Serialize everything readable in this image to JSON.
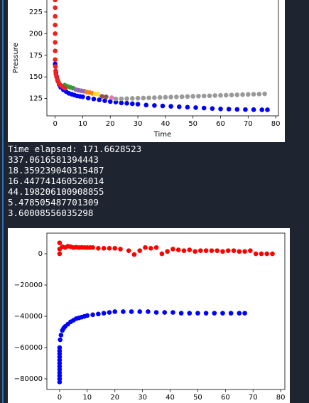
{
  "chart_data": [
    {
      "type": "scatter",
      "xlabel": "Time",
      "ylabel": "Pressure",
      "xlim": [
        -3,
        81
      ],
      "ylim": [
        105,
        243
      ],
      "xticks": [
        0,
        10,
        20,
        30,
        40,
        50,
        60,
        70,
        80
      ],
      "yticks": [
        125,
        150,
        175,
        200,
        225
      ],
      "series": [
        {
          "color": "#0000ff",
          "x": [
            0,
            0.3,
            0.6,
            1,
            1.5,
            2,
            3,
            4,
            5,
            6,
            7,
            8,
            9,
            10,
            12,
            14,
            16,
            18,
            20,
            22,
            24,
            26,
            28,
            30,
            33,
            36,
            39,
            42,
            45,
            48,
            51,
            54,
            57,
            60,
            63,
            66,
            69,
            72,
            75,
            77
          ],
          "values": [
            165,
            155,
            150,
            145,
            141,
            138,
            135,
            133,
            131,
            130,
            129,
            128,
            127.5,
            127,
            125.5,
            124.5,
            123.5,
            122.5,
            121.5,
            121,
            120,
            119.5,
            119,
            118.5,
            117.5,
            117,
            116.5,
            116,
            115.5,
            115,
            114.5,
            114,
            113.5,
            113,
            112.8,
            112.5,
            112.3,
            112.2,
            112,
            112
          ]
        },
        {
          "color": "#999999",
          "x": [
            22,
            24,
            26,
            28,
            30,
            32,
            34,
            36,
            38,
            40,
            42,
            44,
            46,
            48,
            50,
            52,
            54,
            56,
            58,
            60,
            62,
            64,
            66,
            68,
            70,
            72,
            74,
            76
          ],
          "values": [
            124.5,
            124.7,
            124.9,
            125.2,
            125.4,
            125.6,
            125.8,
            126,
            126.3,
            126.5,
            126.7,
            126.9,
            127.1,
            127.4,
            127.6,
            127.8,
            128,
            128.2,
            128.5,
            128.7,
            128.9,
            129.1,
            129.3,
            129.6,
            129.8,
            130,
            130.2,
            130.4
          ]
        },
        {
          "color": "#2ca02c",
          "x": [
            3.5,
            4.5,
            5.5,
            6.5
          ],
          "values": [
            140.5,
            139,
            138,
            137
          ]
        },
        {
          "color": "#9467bd",
          "x": [
            7.5,
            8.5,
            9.5,
            10.5
          ],
          "values": [
            135.5,
            134.5,
            134,
            133.5
          ]
        },
        {
          "color": "#ff7f0e",
          "x": [
            11.5,
            12.5,
            13.5
          ],
          "values": [
            132.5,
            132,
            131
          ]
        },
        {
          "color": "#ffdd33",
          "x": [
            14.5,
            15.5
          ],
          "values": [
            130.5,
            130
          ]
        },
        {
          "color": "#8c564b",
          "x": [
            17,
            18.5
          ],
          "values": [
            127.5,
            127
          ]
        },
        {
          "color": "#e377c2",
          "x": [
            20.5
          ],
          "values": [
            126
          ]
        },
        {
          "color": "#ee2222",
          "x": [
            0,
            0,
            0,
            0,
            0,
            0,
            0,
            0,
            0.1,
            0.2,
            0.3,
            0.5,
            0.8,
            1.2,
            1.8,
            2.5,
            3.5
          ],
          "values": [
            239,
            230,
            220,
            210,
            200,
            190,
            180,
            170,
            162,
            157,
            153,
            150,
            147,
            144,
            141,
            139,
            137
          ]
        }
      ]
    },
    {
      "type": "scatter",
      "xlim": [
        -4.6,
        81.5
      ],
      "ylim": [
        -86800,
        13200
      ],
      "xticks": [
        0,
        10,
        20,
        30,
        40,
        50,
        60,
        70,
        80
      ],
      "yticks": [
        0,
        {
          "value": -20000,
          "label": "−20000"
        },
        {
          "value": -40000,
          "label": "−40000"
        },
        {
          "value": -60000,
          "label": "−60000"
        },
        {
          "value": -80000,
          "label": "−80000"
        }
      ],
      "series": [
        {
          "color": "#ff0000",
          "x": [
            0,
            0,
            0,
            1,
            2,
            3,
            4,
            5,
            6,
            7,
            8,
            9,
            10,
            11,
            12,
            14,
            16,
            18,
            20,
            22,
            25,
            27,
            29,
            31,
            33,
            35,
            37,
            39,
            41,
            43,
            45,
            47,
            49,
            51,
            53,
            55,
            57,
            59,
            61,
            63,
            65,
            67,
            69,
            71,
            73,
            75,
            77
          ],
          "values": [
            7000,
            3000,
            0,
            4500,
            4000,
            4800,
            4500,
            4000,
            4200,
            4000,
            4100,
            4000,
            4000,
            4000,
            4000,
            3500,
            3500,
            3500,
            3500,
            3000,
            2000,
            -500,
            2000,
            4000,
            3500,
            4000,
            0,
            1500,
            3000,
            2500,
            2000,
            2500,
            1500,
            2000,
            2000,
            2000,
            2000,
            1500,
            2000,
            2000,
            1500,
            1500,
            2000,
            0,
            0,
            0,
            0
          ]
        },
        {
          "color": "#0000ff",
          "x": [
            0,
            0,
            0,
            0,
            0,
            0,
            0,
            0,
            0,
            0,
            0,
            0,
            0.2,
            0.5,
            1,
            1.5,
            2,
            3,
            4,
            5,
            6,
            7,
            8,
            9,
            10,
            12,
            14,
            16,
            18,
            20,
            23,
            26,
            29,
            32,
            35,
            38,
            41,
            44,
            47,
            50,
            53,
            56,
            59,
            62,
            65,
            67
          ],
          "values": [
            -82000,
            -80000,
            -78000,
            -76000,
            -74000,
            -72000,
            -70000,
            -68000,
            -66000,
            -64000,
            -62000,
            -60000,
            -55000,
            -52000,
            -49000,
            -47500,
            -46500,
            -45000,
            -43500,
            -42500,
            -41500,
            -41000,
            -40500,
            -40000,
            -39500,
            -39000,
            -38500,
            -38000,
            -37500,
            -37000,
            -37000,
            -37000,
            -37000,
            -37000,
            -37500,
            -37500,
            -37500,
            -38000,
            -38000,
            -38000,
            -38000,
            -38000,
            -38000,
            -38000,
            -38000,
            -38000
          ]
        }
      ]
    }
  ],
  "output": {
    "lines": [
      "Time elapsed: 171.6628523",
      "337.0616581394443",
      "18.359239040315487",
      "16.447741460526014",
      "44.198206100908855",
      "5.478505487701309",
      "3.60008556035298"
    ]
  }
}
